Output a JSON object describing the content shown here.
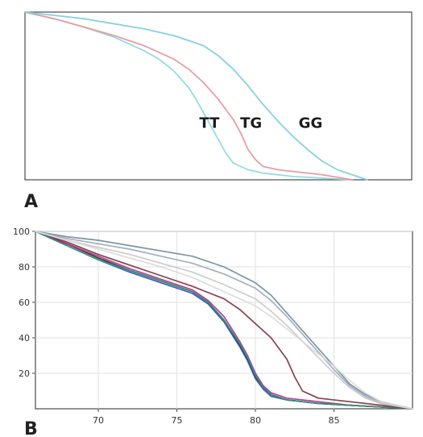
{
  "figure": {
    "panel_a_label": "A",
    "panel_b_label": "B"
  },
  "chart_data": [
    {
      "type": "line",
      "panel": "A",
      "title": "",
      "xlabel": "",
      "ylabel": "",
      "xlim": [
        66,
        92
      ],
      "ylim": [
        0,
        100
      ],
      "grid": false,
      "annotations": [
        "TT",
        "TG",
        "GG"
      ],
      "series": [
        {
          "name": "TT",
          "color": "#8fd9e3",
          "x": [
            66,
            68,
            70,
            72,
            74,
            75,
            76,
            77,
            77.5,
            78,
            78.5,
            79,
            79.5,
            80,
            81,
            82,
            84,
            86,
            88
          ],
          "values": [
            100,
            96,
            91,
            85,
            77,
            72,
            65,
            55,
            48,
            40,
            32,
            24,
            16,
            10,
            6,
            4,
            2,
            1,
            0
          ]
        },
        {
          "name": "TG",
          "color": "#e59a9a",
          "x": [
            66,
            68,
            70,
            72,
            74,
            76,
            77,
            78,
            79,
            80,
            80.5,
            81,
            81.5,
            82,
            83,
            84,
            86,
            88
          ],
          "values": [
            100,
            96,
            91,
            86,
            80,
            72,
            66,
            58,
            48,
            36,
            28,
            18,
            12,
            8,
            6,
            5,
            3,
            0
          ]
        },
        {
          "name": "GG",
          "color": "#7ecfe0",
          "x": [
            66,
            68,
            70,
            72,
            74,
            76,
            78,
            79,
            80,
            81,
            82,
            83,
            84,
            85,
            86,
            87,
            88,
            89
          ],
          "values": [
            100,
            98,
            96,
            93,
            90,
            86,
            80,
            74,
            66,
            56,
            45,
            35,
            26,
            18,
            11,
            6,
            3,
            0
          ]
        }
      ]
    },
    {
      "type": "line",
      "panel": "B",
      "title": "",
      "xlabel": "",
      "ylabel": "",
      "xlim": [
        66,
        90
      ],
      "ylim": [
        0,
        100
      ],
      "yticks": [
        20,
        40,
        60,
        80,
        100
      ],
      "xticks": [
        70,
        75,
        80,
        85
      ],
      "grid": true,
      "series": [
        {
          "group": "TT",
          "color": "#222222",
          "x": [
            66,
            68,
            70,
            72,
            74,
            76,
            77,
            78,
            79,
            79.5,
            80,
            80.5,
            81,
            82,
            84,
            86,
            88,
            90
          ],
          "values": [
            100,
            93,
            85,
            78,
            72,
            66,
            60,
            50,
            36,
            28,
            18,
            12,
            8,
            5,
            3,
            2,
            1,
            0
          ]
        },
        {
          "group": "TT",
          "color": "#2c49c2",
          "x": [
            66,
            68,
            70,
            72,
            74,
            76,
            77,
            78,
            79,
            79.5,
            80,
            80.5,
            81,
            82,
            84,
            86,
            88,
            90
          ],
          "values": [
            100,
            92,
            84,
            77,
            71,
            65,
            59,
            49,
            35,
            27,
            17,
            11,
            7,
            5,
            3,
            2,
            1,
            0
          ]
        },
        {
          "group": "TT",
          "color": "#b02a8a",
          "x": [
            66,
            68,
            70,
            72,
            74,
            76,
            77,
            78,
            79,
            79.5,
            80,
            80.5,
            81,
            82,
            84,
            86,
            88,
            90
          ],
          "values": [
            100,
            93,
            86,
            79,
            73,
            67,
            61,
            52,
            38,
            30,
            20,
            13,
            9,
            6,
            4,
            2,
            1,
            0
          ]
        },
        {
          "group": "TT",
          "color": "#2f9a6a",
          "x": [
            66,
            68,
            70,
            72,
            74,
            76,
            77,
            78,
            79,
            79.5,
            80,
            80.5,
            81,
            82,
            84,
            86,
            88,
            90
          ],
          "values": [
            100,
            92,
            84,
            78,
            72,
            66,
            60,
            50,
            37,
            29,
            19,
            12,
            8,
            5,
            3,
            2,
            1,
            0
          ]
        },
        {
          "group": "TG",
          "color": "#7a2c3a",
          "x": [
            66,
            68,
            70,
            72,
            74,
            76,
            78,
            79,
            80,
            81,
            82,
            82.5,
            83,
            84,
            86,
            88,
            90
          ],
          "values": [
            100,
            94,
            87,
            81,
            75,
            69,
            62,
            56,
            48,
            40,
            28,
            18,
            10,
            6,
            4,
            2,
            0
          ]
        },
        {
          "group": "GG",
          "color": "#6a8aa0",
          "x": [
            66,
            68,
            70,
            72,
            74,
            76,
            78,
            80,
            81,
            82,
            83,
            84,
            85,
            86,
            87,
            88,
            90
          ],
          "values": [
            100,
            97,
            95,
            92,
            89,
            86,
            80,
            71,
            64,
            54,
            44,
            34,
            24,
            14,
            8,
            4,
            0
          ]
        },
        {
          "group": "GG",
          "color": "#9aa6b8",
          "x": [
            66,
            68,
            70,
            72,
            74,
            76,
            78,
            80,
            81,
            82,
            83,
            84,
            85,
            86,
            87,
            88,
            90
          ],
          "values": [
            100,
            96,
            93,
            90,
            86,
            82,
            76,
            68,
            61,
            52,
            42,
            32,
            22,
            13,
            7,
            3,
            0
          ]
        },
        {
          "group": "GG",
          "color": "#c6c6c6",
          "x": [
            66,
            68,
            70,
            72,
            74,
            76,
            78,
            80,
            81,
            82,
            83,
            84,
            85,
            86,
            87,
            88,
            90
          ],
          "values": [
            100,
            95,
            91,
            87,
            82,
            77,
            70,
            62,
            55,
            47,
            38,
            29,
            20,
            12,
            6,
            3,
            0
          ]
        },
        {
          "group": "GG",
          "color": "#d9d9d9",
          "x": [
            66,
            68,
            70,
            72,
            74,
            76,
            78,
            80,
            81,
            82,
            83,
            84,
            85,
            86,
            87,
            88,
            90
          ],
          "values": [
            100,
            95,
            90,
            85,
            80,
            74,
            66,
            58,
            52,
            45,
            38,
            31,
            24,
            16,
            9,
            4,
            0
          ]
        }
      ]
    }
  ],
  "ui": {
    "background": "#ffffff",
    "axis_color": "#4a4a4a",
    "grid_color": "#e2e2e2"
  }
}
